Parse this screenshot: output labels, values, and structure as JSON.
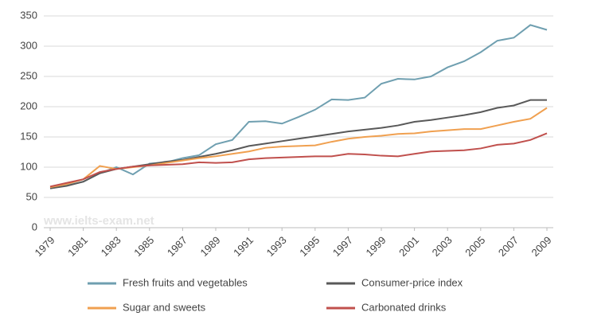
{
  "chart_data": {
    "type": "line",
    "annotation": "www.ielts-exam.net",
    "x": [
      1979,
      1980,
      1981,
      1982,
      1983,
      1984,
      1985,
      1986,
      1987,
      1988,
      1989,
      1990,
      1991,
      1992,
      1993,
      1994,
      1995,
      1996,
      1997,
      1998,
      1999,
      2000,
      2001,
      2002,
      2003,
      2004,
      2005,
      2006,
      2007,
      2008,
      2009
    ],
    "series": [
      {
        "name": "Fresh fruits and vegetables",
        "color": "#6f9fb0",
        "values": [
          65,
          70,
          76,
          90,
          100,
          88,
          106,
          108,
          115,
          120,
          138,
          145,
          175,
          176,
          172,
          183,
          195,
          212,
          211,
          215,
          238,
          246,
          245,
          250,
          265,
          275,
          290,
          309,
          314,
          335,
          327
        ]
      },
      {
        "name": "Consumer-price index",
        "color": "#595959",
        "values": [
          65,
          69,
          76,
          90,
          97,
          101,
          105,
          109,
          112,
          117,
          122,
          128,
          135,
          139,
          143,
          147,
          151,
          155,
          159,
          162,
          165,
          169,
          175,
          178,
          182,
          186,
          191,
          198,
          202,
          211,
          211
        ]
      },
      {
        "name": "Sugar and sweets",
        "color": "#f0a050",
        "values": [
          67,
          72,
          80,
          102,
          97,
          100,
          103,
          107,
          111,
          115,
          118,
          122,
          126,
          132,
          134,
          135,
          136,
          142,
          147,
          150,
          152,
          155,
          156,
          159,
          161,
          163,
          163,
          169,
          175,
          180,
          198
        ]
      },
      {
        "name": "Carbonated drinks",
        "color": "#c0504d",
        "values": [
          68,
          74,
          80,
          92,
          97,
          101,
          103,
          104,
          105,
          108,
          107,
          108,
          113,
          115,
          116,
          117,
          118,
          118,
          122,
          121,
          119,
          118,
          122,
          126,
          127,
          128,
          131,
          137,
          139,
          145,
          156
        ]
      }
    ],
    "xlim": [
      1979,
      2009
    ],
    "xticks": [
      1979,
      1981,
      1983,
      1985,
      1987,
      1989,
      1991,
      1993,
      1995,
      1997,
      1999,
      2001,
      2003,
      2005,
      2007,
      2009
    ],
    "ylim": [
      0,
      350
    ],
    "yticks": [
      0,
      50,
      100,
      150,
      200,
      250,
      300,
      350
    ],
    "grid": true
  }
}
